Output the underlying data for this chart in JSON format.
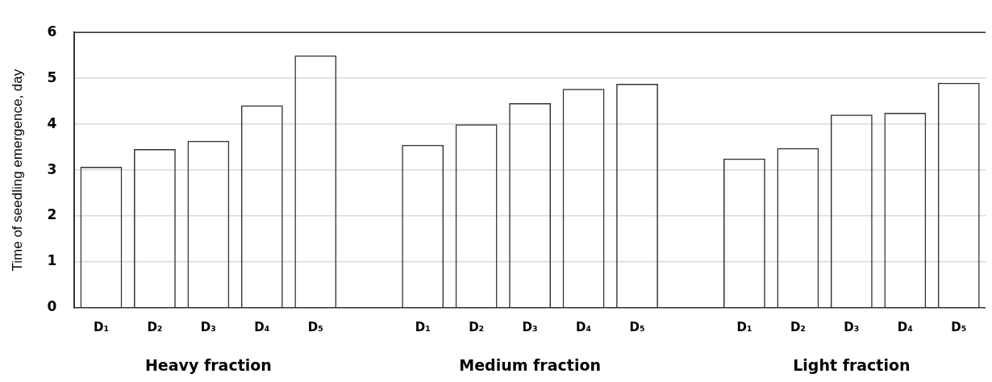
{
  "chart_data": {
    "type": "bar",
    "ylabel": "Time of seedling emergence, day",
    "categories": [
      "D₁",
      "D₂",
      "D₃",
      "D₄",
      "D₅",
      null,
      "D₁",
      "D₂",
      "D₃",
      "D₄",
      "D₅",
      null,
      "D₁",
      "D₂",
      "D₃",
      "D₄",
      "D₅"
    ],
    "values": [
      3.07,
      3.46,
      3.64,
      4.41,
      5.5,
      null,
      3.55,
      4.0,
      4.46,
      4.77,
      4.88,
      null,
      3.25,
      3.48,
      4.21,
      4.25,
      4.9
    ],
    "color": "#333333",
    "ylim": [
      0,
      6
    ],
    "yticks": [
      0,
      1,
      2,
      3,
      4,
      5,
      6
    ],
    "grid": "y",
    "legend": false,
    "annotations": [
      "Heavy fraction",
      "Medium fraction",
      "Light fraction"
    ]
  }
}
